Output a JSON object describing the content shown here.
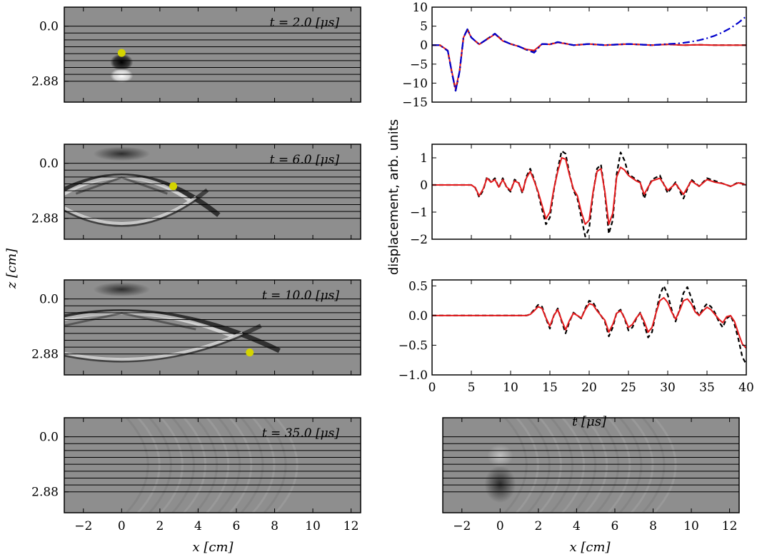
{
  "figure": {
    "snapshot_labels": [
      "t = 2.0 [μs]",
      "t = 6.0 [μs]",
      "t = 10.0 [μs]",
      "t = 35.0 [μs]"
    ],
    "snapshot_times_us": [
      2.0,
      6.0,
      10.0,
      35.0
    ],
    "z_ticks": [
      "0.0",
      "2.88"
    ],
    "x_ticks": [
      "−2",
      "0",
      "2",
      "4",
      "6",
      "8",
      "10",
      "12"
    ],
    "xlabel": "x [cm]",
    "zlabel": "z [cm]",
    "shared_ylabel": "displacement, arb. units",
    "trace_xlabel": "t [μs]",
    "colors": {
      "black_dashed": "#000000",
      "red_solid": "#e41a1c",
      "blue_dashdot": "#0000cc",
      "receiver_dot": "#d4d400",
      "image_bg": "#8e8e8e"
    }
  },
  "chart_data": [
    {
      "type": "heatmap",
      "panel": "snapshot",
      "label": "t = 2.0 [μs]",
      "xlim": [
        -3,
        12.5
      ],
      "yticks": [
        "0.0",
        "2.88"
      ],
      "receiver": {
        "x": 0,
        "z": 1.4
      },
      "horizontal_layers": 9
    },
    {
      "type": "heatmap",
      "panel": "snapshot",
      "label": "t = 6.0 [μs]",
      "xlim": [
        -3,
        12.5
      ],
      "yticks": [
        "0.0",
        "2.88"
      ],
      "receiver": {
        "x": 2.7,
        "z": 1.2
      },
      "horizontal_layers": 9
    },
    {
      "type": "heatmap",
      "panel": "snapshot",
      "label": "t = 10.0 [μs]",
      "xlim": [
        -3,
        12.5
      ],
      "yticks": [
        "0.0",
        "2.88"
      ],
      "receiver": {
        "x": 6.7,
        "z": 2.8
      },
      "horizontal_layers": 9
    },
    {
      "type": "heatmap",
      "panel": "snapshot",
      "label": "t = 35.0 [μs]",
      "xlim": [
        -3,
        12.5
      ],
      "yticks": [
        "0.0",
        "2.88"
      ],
      "xticks": [
        -2,
        0,
        2,
        4,
        6,
        8,
        10,
        12
      ],
      "xlabel": "x [cm]",
      "horizontal_layers": 9
    },
    {
      "type": "heatmap",
      "panel": "snapshot-right",
      "label": "",
      "xlim": [
        -3,
        12.5
      ],
      "xticks": [
        -2,
        0,
        2,
        4,
        6,
        8,
        10,
        12
      ],
      "xlabel": "x [cm]",
      "horizontal_layers": 9
    },
    {
      "type": "line",
      "panel": "trace",
      "xlim": [
        0,
        40
      ],
      "ylim": [
        -15,
        10
      ],
      "yticks": [
        10,
        5,
        0,
        -5,
        -10,
        -15
      ],
      "series": [
        {
          "style": "dashed",
          "color": "#000000",
          "x": [
            0,
            1,
            2,
            2.5,
            3,
            3.5,
            4,
            4.5,
            5,
            6,
            7,
            8,
            9,
            10,
            11,
            12,
            13,
            14,
            15,
            16,
            17,
            18,
            20,
            22,
            25,
            28,
            30,
            32,
            34,
            36,
            38,
            40
          ],
          "y": [
            0,
            0,
            -1.5,
            -7,
            -12,
            -7,
            2,
            4.2,
            2,
            0.2,
            1.6,
            3,
            1.2,
            0.3,
            -0.3,
            -1.2,
            -1.5,
            0.3,
            0.2,
            0.8,
            0.4,
            0,
            0.3,
            0,
            0.3,
            0,
            0.2,
            0,
            0.1,
            0,
            0,
            0
          ]
        },
        {
          "style": "solid",
          "color": "#e41a1c",
          "x": [
            0,
            1,
            2,
            2.5,
            3,
            3.5,
            4,
            4.5,
            5,
            6,
            7,
            8,
            9,
            10,
            11,
            12,
            13,
            14,
            15,
            16,
            17,
            18,
            20,
            22,
            25,
            28,
            30,
            32,
            34,
            36,
            38,
            40
          ],
          "y": [
            0,
            0,
            -1.4,
            -6.8,
            -11.6,
            -6.8,
            2,
            4,
            2,
            0.2,
            1.5,
            2.9,
            1.1,
            0.3,
            -0.3,
            -1.1,
            -1.4,
            0.3,
            0.2,
            0.7,
            0.4,
            0,
            0.3,
            0,
            0.3,
            0,
            0.2,
            0,
            0.1,
            0,
            0,
            0
          ]
        },
        {
          "style": "dashdot",
          "color": "#0000cc",
          "x": [
            0,
            1,
            2,
            2.5,
            3,
            3.5,
            4,
            4.5,
            5,
            6,
            7,
            8,
            9,
            10,
            11,
            12,
            13,
            14,
            15,
            16,
            17,
            18,
            20,
            22,
            25,
            28,
            30,
            31,
            32,
            33,
            34,
            35,
            36,
            37,
            38,
            39,
            40
          ],
          "y": [
            0,
            0,
            -1.5,
            -7,
            -12,
            -7,
            2,
            4.2,
            2,
            0.2,
            1.6,
            3,
            1.2,
            0.3,
            -0.3,
            -1.2,
            -2,
            0.3,
            0.2,
            0.8,
            0.4,
            0,
            0.3,
            0,
            0.3,
            0,
            0.3,
            0.4,
            0.6,
            0.9,
            1.3,
            1.8,
            2.5,
            3.4,
            4.5,
            5.9,
            7.6
          ]
        }
      ]
    },
    {
      "type": "line",
      "panel": "trace",
      "xlim": [
        0,
        40
      ],
      "ylim": [
        -2,
        1.5
      ],
      "yticks": [
        1,
        0,
        -1,
        -2
      ],
      "series": [
        {
          "style": "dashed",
          "color": "#000000",
          "x": [
            0,
            5,
            5.5,
            6,
            6.5,
            7,
            7.5,
            8,
            8.5,
            9,
            9.5,
            10,
            10.5,
            11,
            11.5,
            12,
            12.5,
            13,
            13.5,
            14,
            14.5,
            15,
            15.5,
            16,
            16.5,
            17,
            17.5,
            18,
            18.5,
            19,
            19.5,
            20,
            20.5,
            21,
            21.5,
            22,
            22.5,
            23,
            23.5,
            24,
            24.5,
            25,
            25.5,
            26,
            26.5,
            27,
            27.5,
            28,
            29,
            30,
            31,
            32,
            33,
            34,
            35,
            36,
            37,
            38,
            39,
            40
          ],
          "y": [
            0,
            0,
            -0.1,
            -0.45,
            -0.2,
            0.3,
            0.1,
            0.25,
            -0.1,
            0.25,
            -0.1,
            -0.25,
            0.2,
            0.1,
            -0.3,
            0.3,
            0.6,
            0.2,
            -0.3,
            -0.9,
            -1.45,
            -1.2,
            -0.2,
            0.6,
            1.25,
            1.15,
            0.4,
            -0.2,
            -0.5,
            -1.2,
            -1.9,
            -1.6,
            -0.3,
            0.6,
            0.75,
            -0.3,
            -1.8,
            -1.3,
            0.4,
            1.2,
            0.9,
            0.4,
            0.3,
            0.2,
            0.1,
            -0.5,
            -0.1,
            0.2,
            0.35,
            -0.3,
            0.1,
            -0.5,
            0.2,
            -0.05,
            0.25,
            0.15,
            0.05,
            -0.05,
            0.1,
            0
          ]
        },
        {
          "style": "solid",
          "color": "#e41a1c",
          "x": [
            0,
            5,
            5.5,
            6,
            6.5,
            7,
            7.5,
            8,
            8.5,
            9,
            9.5,
            10,
            10.5,
            11,
            11.5,
            12,
            12.5,
            13,
            13.5,
            14,
            14.5,
            15,
            15.5,
            16,
            16.5,
            17,
            17.5,
            18,
            18.5,
            19,
            19.5,
            20,
            20.5,
            21,
            21.5,
            22,
            22.5,
            23,
            23.5,
            24,
            24.5,
            25,
            25.5,
            26,
            26.5,
            27,
            27.5,
            28,
            29,
            30,
            31,
            32,
            33,
            34,
            35,
            36,
            37,
            38,
            39,
            40
          ],
          "y": [
            0,
            0,
            -0.1,
            -0.4,
            -0.15,
            0.25,
            0.1,
            0.2,
            -0.08,
            0.2,
            -0.08,
            -0.2,
            0.15,
            0.08,
            -0.25,
            0.25,
            0.5,
            0.15,
            -0.25,
            -0.75,
            -1.25,
            -1.0,
            -0.15,
            0.5,
            1.0,
            0.95,
            0.35,
            -0.15,
            -0.4,
            -1.0,
            -1.45,
            -1.3,
            -0.25,
            0.5,
            0.6,
            -0.25,
            -1.45,
            -1.05,
            0.3,
            0.65,
            0.55,
            0.35,
            0.25,
            0.15,
            0.08,
            -0.35,
            -0.08,
            0.15,
            0.25,
            -0.2,
            0.05,
            -0.35,
            0.15,
            -0.05,
            0.2,
            0.1,
            0.05,
            -0.05,
            0.08,
            0
          ]
        }
      ]
    },
    {
      "type": "line",
      "panel": "trace",
      "xlim": [
        0,
        40
      ],
      "ylim": [
        -1.0,
        0.6
      ],
      "yticks": [
        0.5,
        0.0,
        -0.5,
        -1.0
      ],
      "xticks": [
        0,
        5,
        10,
        15,
        20,
        25,
        30,
        35,
        40
      ],
      "xlabel": "t [μs]",
      "series": [
        {
          "style": "dashed",
          "color": "#000000",
          "x": [
            0,
            12,
            12.5,
            13,
            13.5,
            14,
            14.5,
            15,
            15.5,
            16,
            16.5,
            17,
            17.5,
            18,
            18.5,
            19,
            19.5,
            20,
            20.5,
            21,
            21.5,
            22,
            22.5,
            23,
            23.5,
            24,
            24.5,
            25,
            25.5,
            26,
            26.5,
            27,
            27.5,
            28,
            28.5,
            29,
            29.5,
            30,
            30.5,
            31,
            31.5,
            32,
            32.5,
            33,
            33.5,
            34,
            34.5,
            35,
            35.5,
            36,
            36.5,
            37,
            37.5,
            38,
            38.5,
            39,
            39.5,
            40
          ],
          "y": [
            0,
            0,
            0.02,
            0.1,
            0.18,
            0.15,
            -0.05,
            -0.22,
            0.0,
            0.12,
            -0.1,
            -0.3,
            -0.1,
            0.05,
            0.0,
            -0.05,
            0.12,
            0.25,
            0.22,
            0.1,
            0.0,
            -0.1,
            -0.35,
            -0.2,
            0.05,
            0.1,
            -0.05,
            -0.25,
            -0.2,
            -0.05,
            0.05,
            -0.15,
            -0.37,
            -0.28,
            0.05,
            0.35,
            0.5,
            0.35,
            0.1,
            -0.1,
            0.1,
            0.38,
            0.48,
            0.3,
            0.1,
            0.0,
            0.12,
            0.2,
            0.15,
            0.05,
            -0.1,
            -0.2,
            -0.05,
            0.0,
            -0.15,
            -0.4,
            -0.7,
            -0.82
          ]
        },
        {
          "style": "solid",
          "color": "#e41a1c",
          "x": [
            0,
            12,
            12.5,
            13,
            13.5,
            14,
            14.5,
            15,
            15.5,
            16,
            16.5,
            17,
            17.5,
            18,
            18.5,
            19,
            19.5,
            20,
            20.5,
            21,
            21.5,
            22,
            22.5,
            23,
            23.5,
            24,
            24.5,
            25,
            25.5,
            26,
            26.5,
            27,
            27.5,
            28,
            28.5,
            29,
            29.5,
            30,
            30.5,
            31,
            31.5,
            32,
            32.5,
            33,
            33.5,
            34,
            34.5,
            35,
            35.5,
            36,
            36.5,
            37,
            37.5,
            38,
            38.5,
            39,
            39.5,
            40
          ],
          "y": [
            0,
            0,
            0.02,
            0.08,
            0.15,
            0.12,
            -0.04,
            -0.18,
            0.0,
            0.1,
            -0.08,
            -0.24,
            -0.08,
            0.04,
            0.0,
            -0.04,
            0.1,
            0.2,
            0.18,
            0.08,
            0.0,
            -0.08,
            -0.28,
            -0.15,
            0.04,
            0.08,
            -0.04,
            -0.2,
            -0.15,
            -0.04,
            0.04,
            -0.1,
            -0.28,
            -0.2,
            0.04,
            0.25,
            0.3,
            0.22,
            0.06,
            -0.06,
            0.08,
            0.25,
            0.28,
            0.2,
            0.06,
            0.0,
            0.08,
            0.14,
            0.1,
            0.02,
            -0.06,
            -0.12,
            -0.02,
            0.0,
            -0.1,
            -0.3,
            -0.48,
            -0.55
          ]
        }
      ]
    }
  ]
}
